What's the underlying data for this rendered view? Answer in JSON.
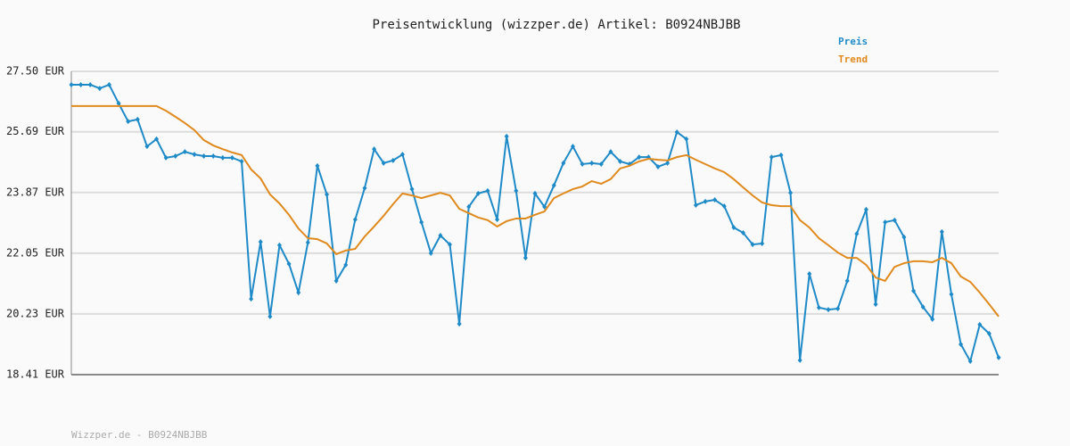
{
  "chart_data": {
    "type": "line",
    "title": "Preisentwicklung (wizzper.de) Artikel: B0924NBJBB",
    "footer": "Wizzper.de - B0924NBJBB",
    "legend": "top-right",
    "grid": true,
    "ylim": [
      18.41,
      27.5
    ],
    "yticks": [
      {
        "value": 18.41,
        "label": "18.41 EUR"
      },
      {
        "value": 20.23,
        "label": "20.23 EUR"
      },
      {
        "value": 22.05,
        "label": "22.05 EUR"
      },
      {
        "value": 23.87,
        "label": "23.87 EUR"
      },
      {
        "value": 25.69,
        "label": "25.69 EUR"
      },
      {
        "value": 27.5,
        "label": "27.50 EUR"
      }
    ],
    "series": [
      {
        "name": "Preis",
        "color": "#1f8ac8",
        "markers": true,
        "values": [
          27.1,
          27.1,
          27.1,
          26.99,
          27.1,
          26.54,
          26.0,
          26.06,
          25.25,
          25.47,
          24.91,
          24.96,
          25.09,
          25.01,
          24.96,
          24.96,
          24.91,
          24.91,
          24.8,
          20.68,
          22.39,
          20.15,
          22.29,
          21.73,
          20.87,
          22.37,
          24.67,
          23.81,
          21.22,
          21.7,
          23.06,
          24.0,
          25.17,
          24.75,
          24.83,
          25.01,
          23.97,
          22.98,
          22.05,
          22.58,
          22.31,
          19.93,
          23.44,
          23.84,
          23.92,
          23.06,
          25.55,
          23.92,
          21.91,
          23.84,
          23.44,
          24.08,
          24.75,
          25.25,
          24.72,
          24.75,
          24.72,
          25.09,
          24.8,
          24.72,
          24.93,
          24.93,
          24.64,
          24.75,
          25.68,
          25.47,
          23.49,
          23.6,
          23.65,
          23.46,
          22.82,
          22.66,
          22.31,
          22.34,
          24.93,
          24.99,
          23.86,
          18.84,
          21.43,
          20.42,
          20.36,
          20.39,
          21.22,
          22.63,
          23.36,
          20.52,
          22.98,
          23.04,
          22.53,
          20.92,
          20.44,
          20.07,
          22.69,
          20.82,
          19.32,
          18.81,
          19.91,
          19.64,
          18.92
        ]
      },
      {
        "name": "Trend",
        "color": "#e08a1e",
        "markers": false,
        "values": [
          26.46,
          26.46,
          26.46,
          26.46,
          26.46,
          26.46,
          26.46,
          26.46,
          26.46,
          26.46,
          26.32,
          26.14,
          25.95,
          25.74,
          25.44,
          25.28,
          25.17,
          25.07,
          24.99,
          24.56,
          24.29,
          23.81,
          23.54,
          23.2,
          22.79,
          22.5,
          22.47,
          22.34,
          22.02,
          22.13,
          22.18,
          22.55,
          22.85,
          23.17,
          23.52,
          23.84,
          23.78,
          23.7,
          23.78,
          23.86,
          23.78,
          23.38,
          23.25,
          23.12,
          23.04,
          22.85,
          23.01,
          23.09,
          23.09,
          23.2,
          23.3,
          23.7,
          23.84,
          23.97,
          24.05,
          24.21,
          24.13,
          24.27,
          24.59,
          24.67,
          24.8,
          24.88,
          24.85,
          24.83,
          24.93,
          24.99,
          24.85,
          24.72,
          24.59,
          24.48,
          24.27,
          24.02,
          23.78,
          23.57,
          23.49,
          23.46,
          23.46,
          23.04,
          22.82,
          22.5,
          22.29,
          22.07,
          21.91,
          21.91,
          21.7,
          21.32,
          21.22,
          21.64,
          21.75,
          21.81,
          21.81,
          21.78,
          21.91,
          21.75,
          21.35,
          21.19,
          20.87,
          20.52,
          20.15
        ]
      }
    ]
  }
}
